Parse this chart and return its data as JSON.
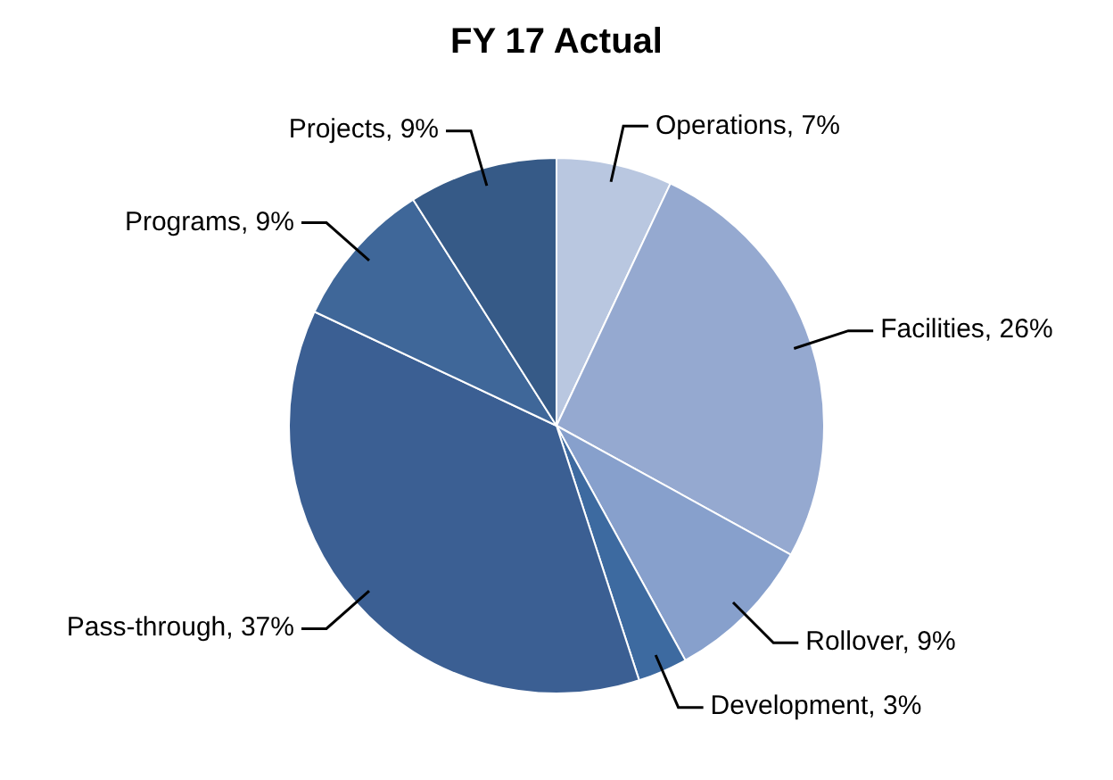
{
  "chart_data": {
    "type": "pie",
    "title": "FY 17 Actual",
    "categories": [
      "Operations",
      "Facilities",
      "Rollover",
      "Development",
      "Pass-through",
      "Programs",
      "Projects"
    ],
    "values": [
      7,
      26,
      9,
      3,
      37,
      9,
      9
    ],
    "value_labels": [
      "7%",
      "26%",
      "9%",
      "3%",
      "37%",
      "9%",
      "9%"
    ],
    "colors": [
      "#b9c7e0",
      "#95a9d0",
      "#87a0cc",
      "#3d6aa0",
      "#3b5f93",
      "#3f6799",
      "#365a87"
    ],
    "legend": false
  }
}
